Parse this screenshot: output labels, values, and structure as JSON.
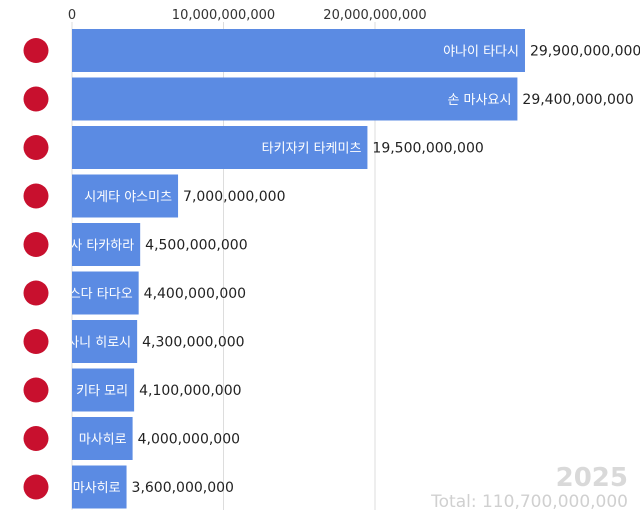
{
  "chart_data": {
    "type": "bar",
    "orientation": "horizontal",
    "title": "",
    "xlabel": "",
    "ylabel": "",
    "xlim": [
      0,
      29900000000
    ],
    "x_ticks": [
      0,
      10000000000,
      20000000000
    ],
    "x_tick_labels": [
      "0",
      "10,000,000,000",
      "20,000,000,000"
    ],
    "grid": true,
    "categories": [
      "야나이 타다시",
      "손 마사요시",
      "타키자키 타케미츠",
      "시게타 야스미츠",
      "사 타카하라",
      "스다 타다오",
      "사니 히로시",
      "키타 모리",
      "마사히로",
      "마사히로"
    ],
    "values": [
      29900000000,
      29400000000,
      19500000000,
      7000000000,
      4500000000,
      4400000000,
      4300000000,
      4100000000,
      4000000000,
      3600000000
    ],
    "value_labels": [
      "29,900,000,000",
      "29,400,000,000",
      "19,500,000,000",
      "7,000,000,000",
      "4,500,000,000",
      "4,400,000,000",
      "4,300,000,000",
      "4,100,000,000",
      "4,000,000,000",
      "3,600,000,000"
    ],
    "bar_color": "#5b8be3",
    "flag": "japan-flag-icon",
    "flag_color": "#c8102e",
    "year": "2025",
    "total": "Total: 110,700,000,000"
  }
}
